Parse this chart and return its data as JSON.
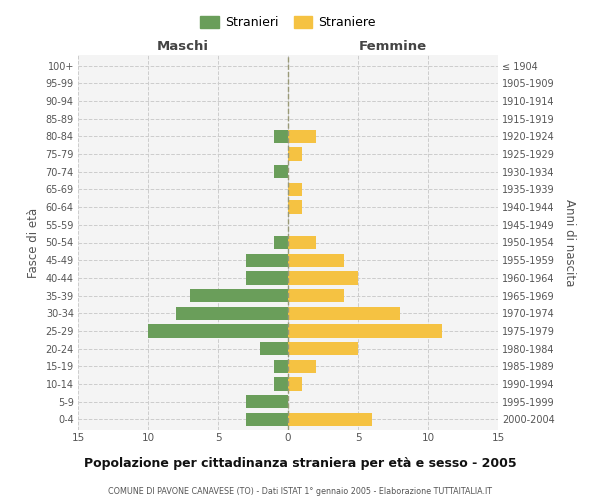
{
  "age_groups": [
    "0-4",
    "5-9",
    "10-14",
    "15-19",
    "20-24",
    "25-29",
    "30-34",
    "35-39",
    "40-44",
    "45-49",
    "50-54",
    "55-59",
    "60-64",
    "65-69",
    "70-74",
    "75-79",
    "80-84",
    "85-89",
    "90-94",
    "95-99",
    "100+"
  ],
  "birth_years": [
    "2000-2004",
    "1995-1999",
    "1990-1994",
    "1985-1989",
    "1980-1984",
    "1975-1979",
    "1970-1974",
    "1965-1969",
    "1960-1964",
    "1955-1959",
    "1950-1954",
    "1945-1949",
    "1940-1944",
    "1935-1939",
    "1930-1934",
    "1925-1929",
    "1920-1924",
    "1915-1919",
    "1910-1914",
    "1905-1909",
    "≤ 1904"
  ],
  "males": [
    3,
    3,
    1,
    1,
    2,
    10,
    8,
    7,
    3,
    3,
    1,
    0,
    0,
    0,
    1,
    0,
    1,
    0,
    0,
    0,
    0
  ],
  "females": [
    6,
    0,
    1,
    2,
    5,
    11,
    8,
    4,
    5,
    4,
    2,
    0,
    1,
    1,
    0,
    1,
    2,
    0,
    0,
    0,
    0
  ],
  "male_color": "#6a9e5a",
  "female_color": "#f5c242",
  "background_color": "#f4f4f4",
  "grid_color": "#cccccc",
  "title": "Popolazione per cittadinanza straniera per età e sesso - 2005",
  "subtitle": "COMUNE DI PAVONE CANAVESE (TO) - Dati ISTAT 1° gennaio 2005 - Elaborazione TUTTAITALIA.IT",
  "xlabel_left": "Maschi",
  "xlabel_right": "Femmine",
  "ylabel_left": "Fasce di età",
  "ylabel_right": "Anni di nascita",
  "xlim": 15,
  "legend_male": "Stranieri",
  "legend_female": "Straniere"
}
